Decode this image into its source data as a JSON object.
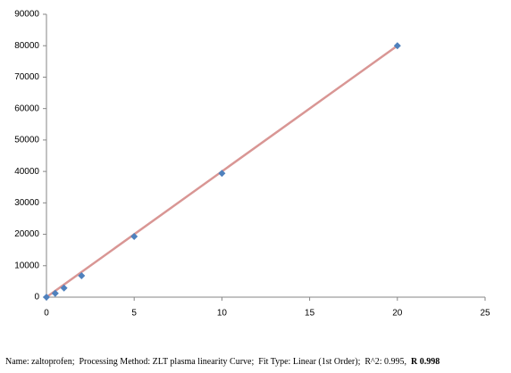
{
  "chart_data": {
    "type": "scatter",
    "x": [
      0,
      0.5,
      1,
      2,
      5,
      10,
      20
    ],
    "series": [
      {
        "color": "#4f81bd",
        "values": [
          0,
          1200,
          2900,
          6800,
          19300,
          39400,
          80000
        ]
      }
    ],
    "fit_line": {
      "color": "#d99694",
      "x": [
        0,
        20
      ],
      "values": [
        0,
        80000
      ]
    },
    "xlim": [
      0,
      25
    ],
    "xticks": [
      0,
      5,
      10,
      15,
      20,
      25
    ],
    "ylim": [
      0,
      90000
    ],
    "yticks": [
      0,
      10000,
      20000,
      30000,
      40000,
      50000,
      60000,
      70000,
      80000,
      90000
    ],
    "caption": "Name: zaltoprofen;  Processing Method: ZLT plasma linearity Curve;  Fit Type: Linear (1st Order);  R^2: 0.995,  ",
    "caption_bold": "R 0.998"
  }
}
